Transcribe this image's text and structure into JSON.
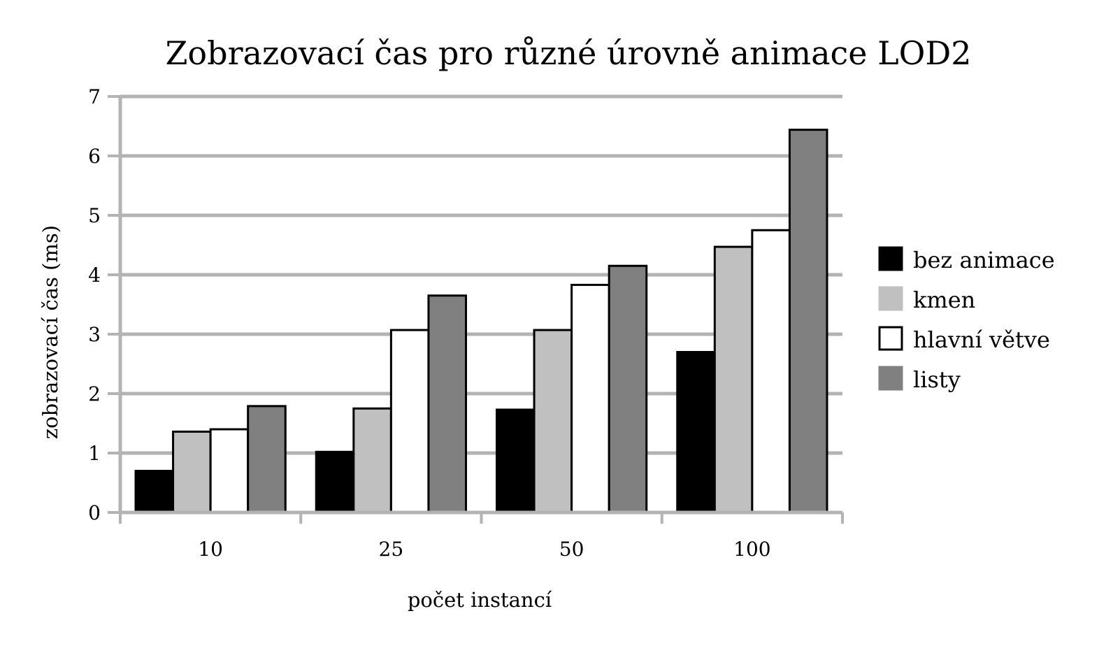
{
  "chart_data": {
    "type": "bar",
    "title": "Zobrazovací čas pro různé úrovně animace LOD2",
    "xlabel": "počet instancí",
    "ylabel": "zobrazovací čas (ms)",
    "categories": [
      "10",
      "25",
      "50",
      "100"
    ],
    "ylim": [
      0,
      7
    ],
    "yticks": [
      "0",
      "1",
      "2",
      "3",
      "4",
      "5",
      "6",
      "7"
    ],
    "grid": true,
    "legend_position": "right",
    "series": [
      {
        "name": "bez animace",
        "color": "#000000",
        "values": [
          0.7,
          1.02,
          1.73,
          2.7
        ]
      },
      {
        "name": "kmen",
        "color": "#c0c0c0",
        "values": [
          1.36,
          1.75,
          3.07,
          4.47
        ]
      },
      {
        "name": "hlavní větve",
        "color": "#ffffff",
        "values": [
          1.4,
          3.07,
          3.83,
          4.75
        ]
      },
      {
        "name": "listy",
        "color": "#808080",
        "values": [
          1.79,
          3.65,
          4.15,
          6.44
        ]
      }
    ],
    "gridline_color": "#b3b3b3"
  }
}
